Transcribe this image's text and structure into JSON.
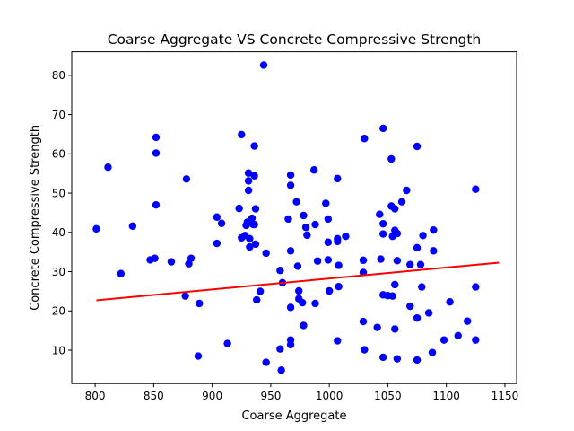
{
  "chart_data": {
    "type": "scatter",
    "title": "Coarse Aggregate VS Concrete Compressive Strength",
    "xlabel": "Coarse Aggregate",
    "ylabel": "Concrete Compressive Strength",
    "xlim": [
      780,
      1160
    ],
    "ylim": [
      1.5,
      86
    ],
    "xticks": [
      800,
      850,
      900,
      950,
      1000,
      1050,
      1100,
      1150
    ],
    "yticks": [
      10,
      20,
      30,
      40,
      50,
      60,
      70,
      80
    ],
    "grid": false,
    "point_color": "#0000ff",
    "line_color": "#ff0000",
    "points": [
      [
        801,
        40.9
      ],
      [
        811,
        56.6
      ],
      [
        822,
        29.5
      ],
      [
        832,
        41.6
      ],
      [
        847,
        33.0
      ],
      [
        851,
        33.4
      ],
      [
        852,
        47.0
      ],
      [
        852,
        60.2
      ],
      [
        852,
        64.2
      ],
      [
        865,
        32.5
      ],
      [
        877,
        23.8
      ],
      [
        878,
        53.6
      ],
      [
        880,
        32.0
      ],
      [
        882,
        33.4
      ],
      [
        889,
        21.9
      ],
      [
        888,
        8.5
      ],
      [
        904,
        43.9
      ],
      [
        904,
        37.2
      ],
      [
        908,
        42.3
      ],
      [
        913,
        11.7
      ],
      [
        923,
        46.1
      ],
      [
        925,
        38.6
      ],
      [
        925,
        64.9
      ],
      [
        928,
        39.2
      ],
      [
        929,
        41.8
      ],
      [
        930,
        42.6
      ],
      [
        931,
        50.7
      ],
      [
        931,
        53.1
      ],
      [
        931,
        55.1
      ],
      [
        932,
        38.4
      ],
      [
        932,
        36.3
      ],
      [
        934,
        43.6
      ],
      [
        935,
        42.0
      ],
      [
        936,
        62.0
      ],
      [
        936,
        54.4
      ],
      [
        936,
        42.0
      ],
      [
        937,
        46.0
      ],
      [
        937,
        37.0
      ],
      [
        938,
        22.8
      ],
      [
        941,
        25.0
      ],
      [
        944,
        82.6
      ],
      [
        946,
        34.7
      ],
      [
        946,
        6.9
      ],
      [
        958,
        30.3
      ],
      [
        958,
        10.3
      ],
      [
        959,
        4.9
      ],
      [
        960,
        27.2
      ],
      [
        965,
        43.4
      ],
      [
        967,
        54.6
      ],
      [
        967,
        52.0
      ],
      [
        967,
        35.3
      ],
      [
        967,
        20.9
      ],
      [
        967,
        12.6
      ],
      [
        967,
        11.4
      ],
      [
        972,
        47.8
      ],
      [
        973,
        31.4
      ],
      [
        974,
        25.1
      ],
      [
        974,
        23.1
      ],
      [
        977,
        22.1
      ],
      [
        978,
        44.3
      ],
      [
        978,
        16.3
      ],
      [
        980,
        41.3
      ],
      [
        981,
        39.3
      ],
      [
        987,
        55.9
      ],
      [
        988,
        42.0
      ],
      [
        988,
        21.9
      ],
      [
        990,
        32.7
      ],
      [
        997,
        47.4
      ],
      [
        999,
        43.4
      ],
      [
        999,
        37.5
      ],
      [
        999,
        33.0
      ],
      [
        1000,
        25.1
      ],
      [
        1007,
        53.7
      ],
      [
        1007,
        38.4
      ],
      [
        1007,
        37.7
      ],
      [
        1007,
        12.4
      ],
      [
        1008,
        31.6
      ],
      [
        1008,
        26.2
      ],
      [
        1014,
        39.0
      ],
      [
        1029,
        32.9
      ],
      [
        1029,
        29.8
      ],
      [
        1029,
        17.3
      ],
      [
        1030,
        63.9
      ],
      [
        1030,
        10.1
      ],
      [
        1041,
        15.8
      ],
      [
        1043,
        44.6
      ],
      [
        1044,
        33.2
      ],
      [
        1046,
        66.5
      ],
      [
        1046,
        42.2
      ],
      [
        1046,
        39.6
      ],
      [
        1046,
        24.1
      ],
      [
        1046,
        8.2
      ],
      [
        1050,
        23.9
      ],
      [
        1053,
        58.7
      ],
      [
        1053,
        46.7
      ],
      [
        1054,
        39.0
      ],
      [
        1054,
        23.8
      ],
      [
        1056,
        46.0
      ],
      [
        1056,
        40.5
      ],
      [
        1056,
        26.7
      ],
      [
        1056,
        15.4
      ],
      [
        1058,
        39.7
      ],
      [
        1058,
        32.8
      ],
      [
        1058,
        7.8
      ],
      [
        1062,
        47.8
      ],
      [
        1066,
        50.7
      ],
      [
        1069,
        31.8
      ],
      [
        1069,
        21.2
      ],
      [
        1075,
        61.9
      ],
      [
        1075,
        36.1
      ],
      [
        1075,
        18.2
      ],
      [
        1075,
        7.5
      ],
      [
        1078,
        31.8
      ],
      [
        1079,
        26.1
      ],
      [
        1080,
        39.2
      ],
      [
        1085,
        19.5
      ],
      [
        1089,
        40.6
      ],
      [
        1089,
        35.3
      ],
      [
        1088,
        9.4
      ],
      [
        1098,
        12.6
      ],
      [
        1103,
        22.3
      ],
      [
        1110,
        13.7
      ],
      [
        1118,
        17.4
      ],
      [
        1125,
        51.0
      ],
      [
        1125,
        26.1
      ],
      [
        1125,
        12.6
      ]
    ],
    "fit_line": {
      "x": [
        801,
        1145
      ],
      "y": [
        22.7,
        32.3
      ]
    }
  }
}
